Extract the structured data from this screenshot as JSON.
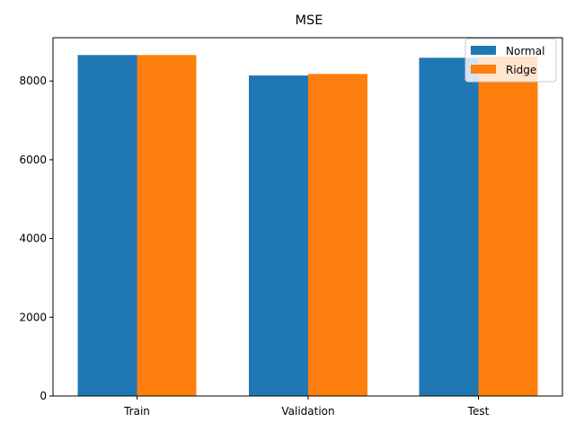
{
  "chart_data": {
    "type": "bar",
    "title": "MSE",
    "xlabel": "",
    "ylabel": "",
    "categories": [
      "Train",
      "Validation",
      "Test"
    ],
    "series": [
      {
        "name": "Normal",
        "values": [
          8660,
          8140,
          8590
        ],
        "color": "#1f77b4"
      },
      {
        "name": "Ridge",
        "values": [
          8660,
          8180,
          8620
        ],
        "color": "#ff7f0e"
      }
    ],
    "ylim": [
      0,
      9100
    ],
    "yticks": [
      0,
      2000,
      4000,
      6000,
      8000
    ],
    "ytick_labels": [
      "0",
      "2000",
      "4000",
      "6000",
      "8000"
    ],
    "grid": false,
    "legend_position": "top-right"
  }
}
